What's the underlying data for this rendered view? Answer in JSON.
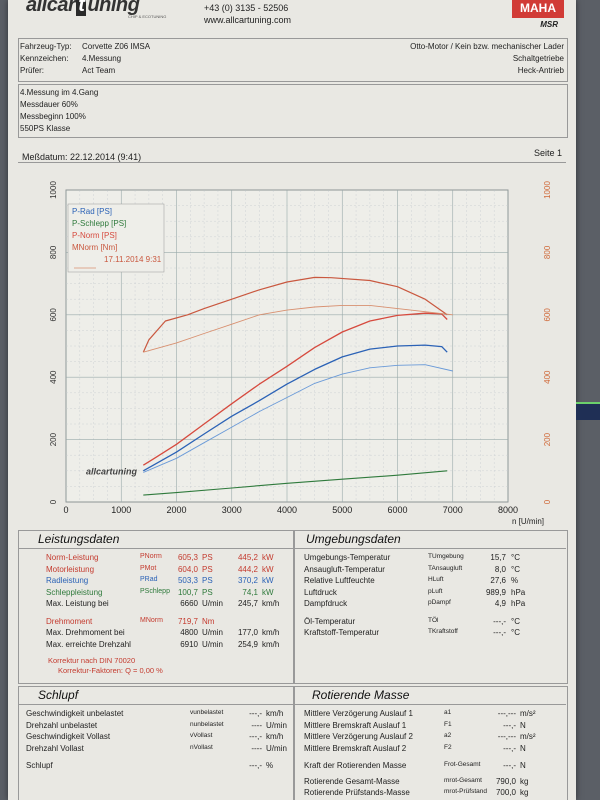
{
  "header": {
    "logo_a": "allcar",
    "logo_b": "t",
    "logo_c": "uning",
    "logo_sub": "CHIP & ECOTUNING",
    "phone": "+43 (0) 3135 - 52506",
    "web": "www.allcartuning.com",
    "brand": "MAHA",
    "brand_sub": "MSR"
  },
  "vehicle": {
    "type_label": "Fahrzeug-Typ:",
    "type_value": "Corvette Z06 IMSA",
    "id_label": "Kennzeichen:",
    "id_value": "4.Messung",
    "tester_label": "Prüfer:",
    "tester_value": "Act Team",
    "r1": "Otto-Motor / Kein bzw. mechanischer Lader",
    "r2": "Schaltgetriebe",
    "r3": "Heck-Antrieb"
  },
  "notes": [
    "4.Messung im 4.Gang",
    "Messdauer 60%",
    "Messbeginn 100%",
    "550PS Klasse"
  ],
  "measure": {
    "date": "Meßdatum: 22.12.2014 (9:41)",
    "page": "Seite 1"
  },
  "chart_data": {
    "type": "line",
    "x_unit": "n [U/min]",
    "xlim": [
      0,
      8000
    ],
    "x_ticks": [
      "0",
      "1000",
      "2000",
      "3000",
      "4000",
      "5000",
      "6000",
      "7000",
      "8000"
    ],
    "ylim_left": [
      0,
      1000
    ],
    "y_ticks_left": [
      "0",
      "200",
      "400",
      "600",
      "800",
      "1000"
    ],
    "ylim_right": [
      0,
      1000
    ],
    "y_ticks_right": [
      "0",
      "200",
      "400",
      "600",
      "800",
      "1000"
    ],
    "legend": [
      "P-Rad [PS]",
      "P-Schlepp [PS]",
      "P-Norm [PS]",
      "MNorm [Nm]",
      "17.11.2014 9:31"
    ],
    "watermark": "allcartuning",
    "series": [
      {
        "name": "P-Norm [PS]",
        "color": "#d64a3e",
        "width": 1.3,
        "x": [
          1400,
          1600,
          2000,
          2500,
          3000,
          3500,
          4000,
          4500,
          5000,
          5500,
          6000,
          6500,
          6800,
          6900
        ],
        "y": [
          118,
          140,
          185,
          250,
          315,
          378,
          435,
          495,
          545,
          580,
          598,
          605,
          603,
          585
        ]
      },
      {
        "name": "P-Rad [PS]",
        "color": "#2b62b6",
        "width": 1.3,
        "x": [
          1400,
          1600,
          2000,
          2500,
          3000,
          3500,
          4000,
          4500,
          5000,
          5500,
          6000,
          6500,
          6800,
          6900
        ],
        "y": [
          100,
          120,
          160,
          218,
          275,
          325,
          378,
          425,
          465,
          490,
          500,
          503,
          498,
          480
        ]
      },
      {
        "name": "P-Schlepp [PS]",
        "color": "#2f7a3c",
        "width": 1.1,
        "x": [
          1400,
          2000,
          3000,
          4000,
          5000,
          6000,
          6900
        ],
        "y": [
          22,
          30,
          45,
          60,
          73,
          86,
          100
        ]
      },
      {
        "name": "P-Rad 17.11.2014",
        "color": "#6a9ad8",
        "width": 0.9,
        "x": [
          1400,
          2000,
          2500,
          3000,
          3500,
          4000,
          4500,
          5000,
          5500,
          6000,
          6500,
          7000
        ],
        "y": [
          95,
          140,
          190,
          240,
          290,
          335,
          380,
          410,
          430,
          438,
          440,
          420
        ]
      },
      {
        "name": "MNorm [Nm]",
        "color": "#c9583f",
        "width": 1.2,
        "x": [
          1400,
          1500,
          1800,
          2200,
          2500,
          3000,
          3500,
          4000,
          4500,
          4800,
          5500,
          6000,
          6500,
          6900
        ],
        "y": [
          480,
          520,
          580,
          600,
          620,
          650,
          680,
          705,
          720,
          719,
          710,
          690,
          650,
          600
        ]
      },
      {
        "name": "MNorm 17.11.2014",
        "color": "#d89070",
        "width": 0.9,
        "x": [
          1400,
          2000,
          2500,
          3000,
          3500,
          4000,
          4500,
          5000,
          5500,
          6000,
          6500,
          7000
        ],
        "y": [
          480,
          510,
          540,
          570,
          600,
          615,
          625,
          630,
          630,
          620,
          610,
          600
        ]
      }
    ]
  },
  "performance": {
    "title": "Leistungsdaten",
    "rows": [
      {
        "label": "Norm-Leistung",
        "sym": "PNorm",
        "v1": "605,3",
        "u1": "PS",
        "v2": "445,2",
        "u2": "kW"
      },
      {
        "label": "Motorleistung",
        "sym": "PMot",
        "v1": "604,0",
        "u1": "PS",
        "v2": "444,2",
        "u2": "kW"
      },
      {
        "label": "Radleistung",
        "sym": "PRad",
        "v1": "503,3",
        "u1": "PS",
        "v2": "370,2",
        "u2": "kW"
      },
      {
        "label": "Schleppleistung",
        "sym": "PSchlepp",
        "v1": "100,7",
        "u1": "PS",
        "v2": "74,1",
        "u2": "kW"
      },
      {
        "label": "Max. Leistung bei",
        "sym": "",
        "v1": "6660",
        "u1": "U/min",
        "v2": "245,7",
        "u2": "km/h"
      },
      {
        "label": "Drehmoment",
        "sym": "MNorm",
        "v1": "719,7",
        "u1": "Nm",
        "v2": "",
        "u2": ""
      },
      {
        "label": "Max. Drehmoment bei",
        "sym": "",
        "v1": "4800",
        "u1": "U/min",
        "v2": "177,0",
        "u2": "km/h"
      },
      {
        "label": "Max. erreichte Drehzahl",
        "sym": "",
        "v1": "6910",
        "u1": "U/min",
        "v2": "254,9",
        "u2": "km/h"
      }
    ],
    "corr1": "Korrektur nach DIN 70020",
    "corr2": "Korrektur-Faktoren: Q  =  0,00 %"
  },
  "environment": {
    "title": "Umgebungsdaten",
    "rows": [
      {
        "label": "Umgebungs-Temperatur",
        "sym": "TUmgebung",
        "val": "15,7",
        "unit": "°C"
      },
      {
        "label": "Ansaugluft-Temperatur",
        "sym": "TAnsaugluft",
        "val": "8,0",
        "unit": "°C"
      },
      {
        "label": "Relative Luftfeuchte",
        "sym": "HLuft",
        "val": "27,6",
        "unit": "%"
      },
      {
        "label": "Luftdruck",
        "sym": "pLuft",
        "val": "989,9",
        "unit": "hPa"
      },
      {
        "label": "Dampfdruck",
        "sym": "pDampf",
        "val": "4,9",
        "unit": "hPa"
      },
      {
        "label": "Öl-Temperatur",
        "sym": "TÖl",
        "val": "---,-",
        "unit": "°C"
      },
      {
        "label": "Kraftstoff-Temperatur",
        "sym": "TKraftstoff",
        "val": "---,-",
        "unit": "°C"
      }
    ]
  },
  "slip": {
    "title": "Schlupf",
    "rows": [
      {
        "label": "Geschwindigkeit unbelastet",
        "sym": "vunbelastet",
        "val": "---,-",
        "unit": "km/h"
      },
      {
        "label": "Drehzahl unbelastet",
        "sym": "nunbelastet",
        "val": "----",
        "unit": "U/min"
      },
      {
        "label": "Geschwindigkeit Vollast",
        "sym": "vVollast",
        "val": "---,-",
        "unit": "km/h"
      },
      {
        "label": "Drehzahl Vollast",
        "sym": "nVollast",
        "val": "----",
        "unit": "U/min"
      },
      {
        "label": "Schlupf",
        "sym": "",
        "val": "---,-",
        "unit": "%"
      }
    ]
  },
  "rotating": {
    "title": "Rotierende Masse",
    "rows": [
      {
        "label": "Mittlere Verzögerung Auslauf 1",
        "sym": "a1",
        "val": "---,---",
        "unit": "m/s²"
      },
      {
        "label": "Mittlere Bremskraft Auslauf 1",
        "sym": "F1",
        "val": "---,-",
        "unit": "N"
      },
      {
        "label": "Mittlere Verzögerung Auslauf 2",
        "sym": "a2",
        "val": "---,---",
        "unit": "m/s²"
      },
      {
        "label": "Mittlere Bremskraft Auslauf 2",
        "sym": "F2",
        "val": "---,-",
        "unit": "N"
      },
      {
        "label": "Kraft der Rotierenden Masse",
        "sym": "Frot-Gesamt",
        "val": "---,-",
        "unit": "N"
      },
      {
        "label": "Rotierende Gesamt-Masse",
        "sym": "mrot-Gesamt",
        "val": "790,0",
        "unit": "kg"
      },
      {
        "label": "Rotierende Prüfstands-Masse",
        "sym": "mrot-Prüfstand",
        "val": "700,0",
        "unit": "kg"
      }
    ]
  }
}
